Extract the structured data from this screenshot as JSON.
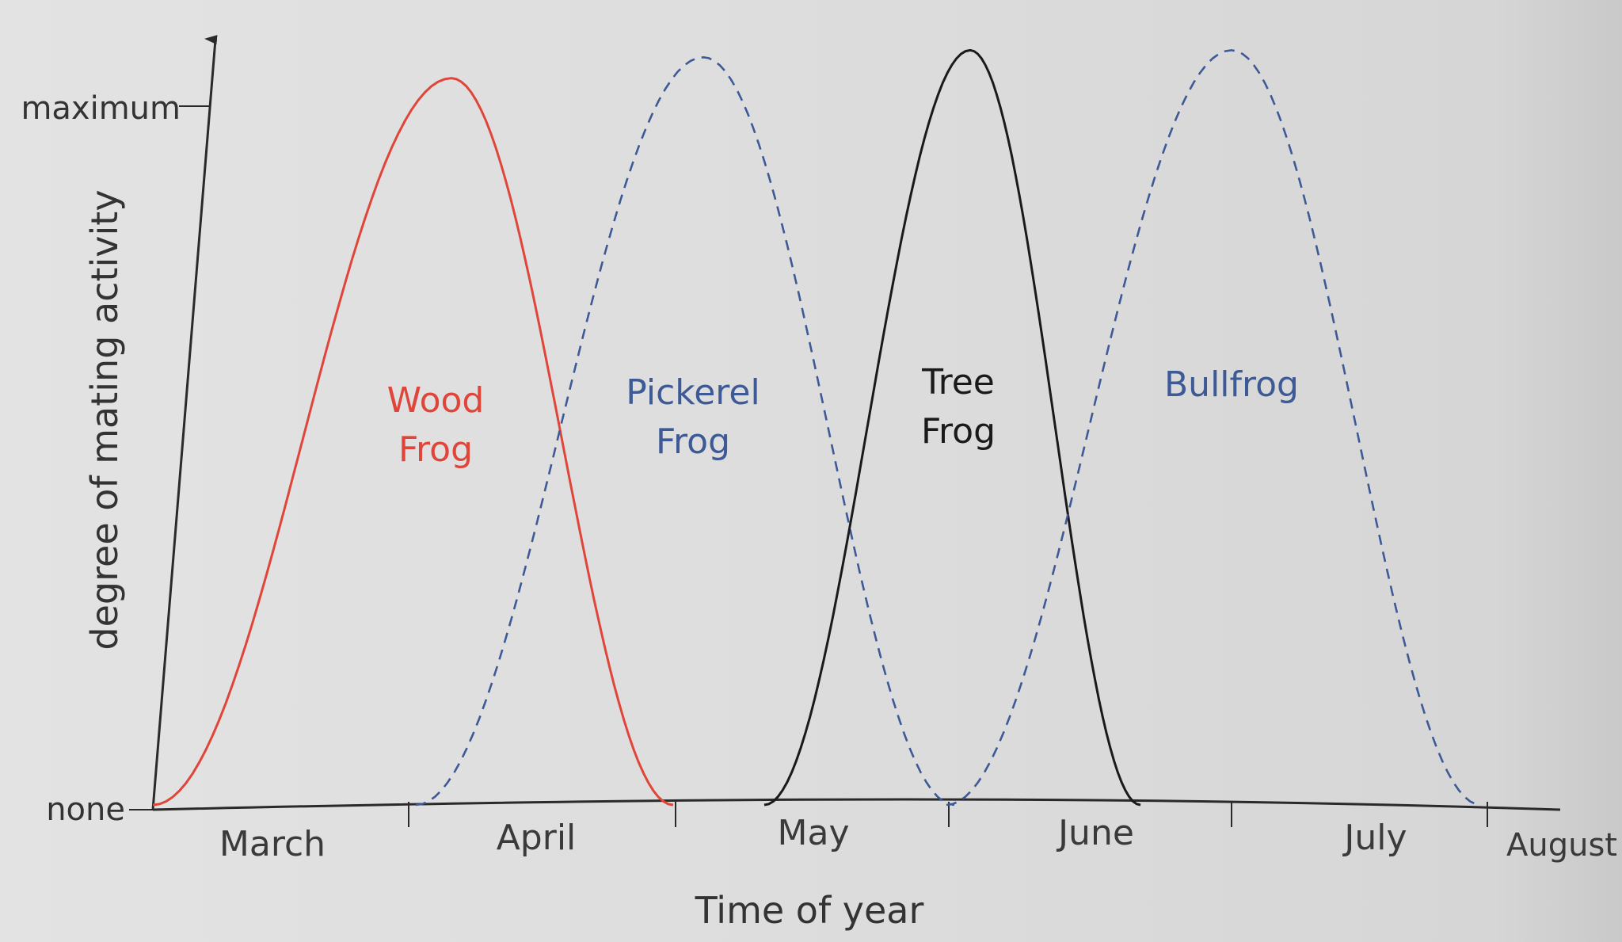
{
  "chart_data": {
    "type": "line",
    "title": "",
    "xlabel": "Time of year",
    "ylabel": "degree of mating activity",
    "x_tick_labels": [
      "March",
      "April",
      "May",
      "June",
      "July",
      "August"
    ],
    "y_tick_labels": [
      "none",
      "maximum"
    ],
    "x_range": [
      "start of March",
      "end of July"
    ],
    "y_range": [
      0,
      1
    ],
    "grid": false,
    "legend": "none (series labelled inside each curve)",
    "series": [
      {
        "name": "Wood Frog",
        "label_lines": [
          "Wood",
          "Frog"
        ],
        "color": "#e0453a",
        "line_style": "solid",
        "onset": "early March",
        "peak": "late March",
        "end": "mid April",
        "peak_value": 1.04
      },
      {
        "name": "Pickerel Frog",
        "label_lines": [
          "Pickerel",
          "Frog"
        ],
        "color": "#3d5a96",
        "line_style": "dashed",
        "onset": "late March",
        "peak": "mid April",
        "end": "late May",
        "peak_value": 1.07
      },
      {
        "name": "Tree Frog",
        "label_lines": [
          "Tree",
          "Frog"
        ],
        "color": "#1a1a1a",
        "line_style": "solid",
        "onset": "late April",
        "peak": "mid May",
        "end": "early June",
        "peak_value": 1.08
      },
      {
        "name": "Bullfrog",
        "label_lines": [
          "Bullfrog"
        ],
        "color": "#3d5a96",
        "line_style": "dashed",
        "onset": "late May",
        "peak": "mid June",
        "end": "late July",
        "peak_value": 1.08
      }
    ]
  }
}
